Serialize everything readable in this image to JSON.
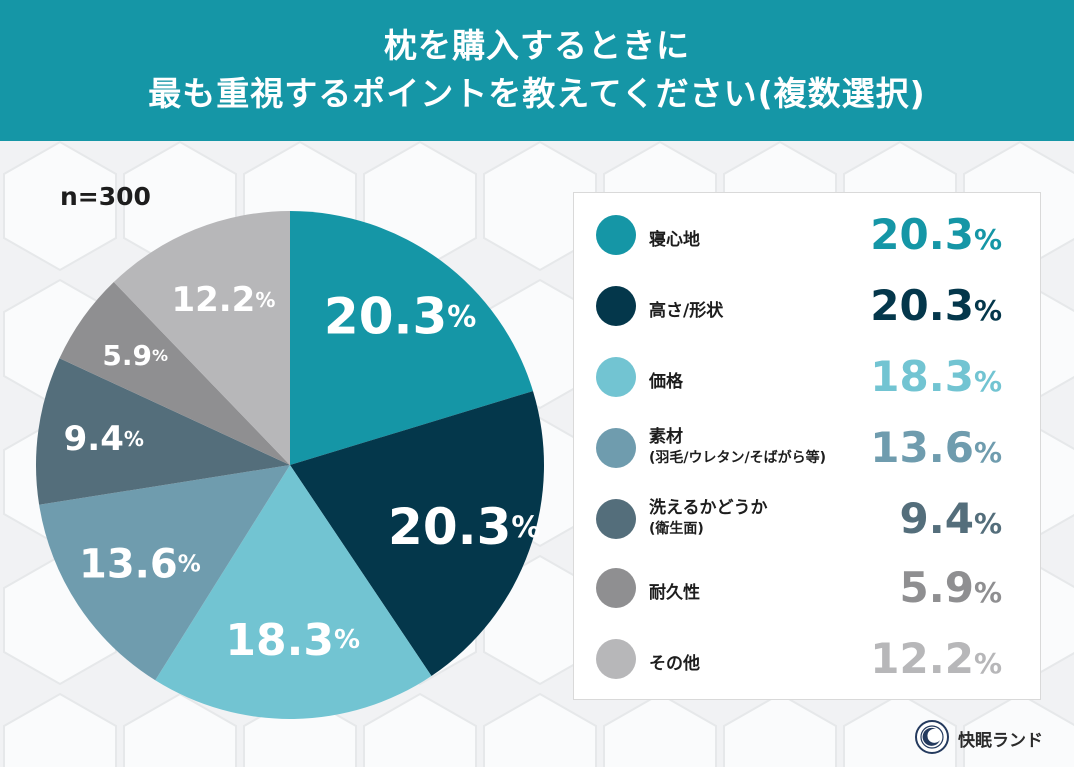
{
  "header": {
    "line1": "枕を購入するときに",
    "line2": "最も重視するポイントを教えてください(複数選択)"
  },
  "sample_size": "n=300",
  "colors": {
    "header_bg": "#1596a6",
    "series": [
      "#1596a6",
      "#04374b",
      "#72c4d2",
      "#6f9cae",
      "#546e7b",
      "#8f8f91",
      "#b7b7b9"
    ]
  },
  "chart_data": {
    "type": "pie",
    "categories": [
      "寝心地",
      "高さ/形状",
      "価格",
      "素材(羽毛/ウレタン/そばがら等)",
      "洗えるかどうか(衛生面)",
      "耐久性",
      "その他"
    ],
    "values": [
      20.3,
      20.3,
      18.3,
      13.6,
      9.4,
      5.9,
      12.2
    ],
    "unit": "%",
    "start_angle": "12 o'clock, clockwise"
  },
  "legend": [
    {
      "label": "寝心地",
      "sub": "",
      "value": "20.3",
      "unit": "%"
    },
    {
      "label": "高さ/形状",
      "sub": "",
      "value": "20.3",
      "unit": "%"
    },
    {
      "label": "価格",
      "sub": "",
      "value": "18.3",
      "unit": "%"
    },
    {
      "label": "素材",
      "sub": "(羽毛/ウレタン/そばがら等)",
      "value": "13.6",
      "unit": "%"
    },
    {
      "label": "洗えるかどうか",
      "sub": "(衛生面)",
      "value": "9.4",
      "unit": "%"
    },
    {
      "label": "耐久性",
      "sub": "",
      "value": "5.9",
      "unit": "%"
    },
    {
      "label": "その他",
      "sub": "",
      "value": "12.2",
      "unit": "%"
    }
  ],
  "brand": {
    "name": "快眠ランド",
    "icon": "sleep-brand-logo-icon"
  }
}
